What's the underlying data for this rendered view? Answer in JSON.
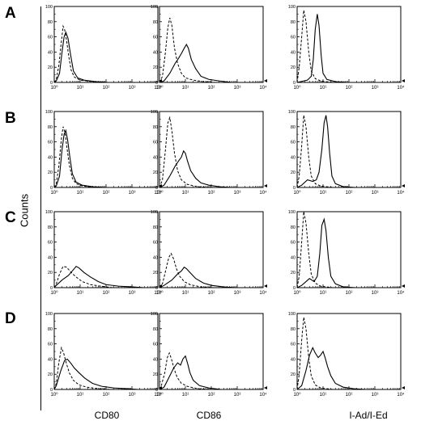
{
  "figure": {
    "row_labels": [
      "A",
      "B",
      "C",
      "D"
    ],
    "column_labels": [
      "CD80",
      "CD86",
      "I-Ad/I-Ed"
    ],
    "y_axis_label": "Counts"
  },
  "chart_data": {
    "type": "line",
    "layout": "grid of 4 rows x 3 columns of flow cytometry histograms",
    "x_scale": "log",
    "xlim": [
      1,
      10000
    ],
    "ylim": [
      0,
      100
    ],
    "x_tick_labels": [
      "10⁰",
      "10¹",
      "10²",
      "10³",
      "10⁴"
    ],
    "y_tick_labels": [
      "0",
      "20",
      "40",
      "60",
      "80",
      "100"
    ],
    "line_styles": {
      "sample": "solid",
      "control": "dashed"
    },
    "panels": [
      {
        "row": "A",
        "column": "CD80",
        "solid": [
          [
            1.2,
            2
          ],
          [
            1.6,
            12
          ],
          [
            2,
            40
          ],
          [
            2.4,
            60
          ],
          [
            2.8,
            66
          ],
          [
            3.4,
            58
          ],
          [
            4.2,
            38
          ],
          [
            5.5,
            15
          ],
          [
            8,
            6
          ],
          [
            14,
            3
          ],
          [
            40,
            1
          ]
        ],
        "dashed": [
          [
            1.2,
            4
          ],
          [
            1.5,
            22
          ],
          [
            1.9,
            55
          ],
          [
            2.2,
            74
          ],
          [
            2.5,
            70
          ],
          [
            3,
            55
          ],
          [
            3.6,
            35
          ],
          [
            4.5,
            16
          ],
          [
            6,
            7
          ],
          [
            10,
            3
          ],
          [
            30,
            1
          ]
        ]
      },
      {
        "row": "A",
        "column": "CD86",
        "solid": [
          [
            1.5,
            2
          ],
          [
            2.5,
            12
          ],
          [
            4,
            25
          ],
          [
            5.5,
            32
          ],
          [
            7,
            38
          ],
          [
            9,
            45
          ],
          [
            11,
            50
          ],
          [
            13,
            45
          ],
          [
            17,
            30
          ],
          [
            25,
            18
          ],
          [
            40,
            8
          ],
          [
            80,
            4
          ],
          [
            200,
            2
          ]
        ],
        "dashed": [
          [
            1.3,
            8
          ],
          [
            1.7,
            40
          ],
          [
            2.1,
            72
          ],
          [
            2.5,
            85
          ],
          [
            3,
            75
          ],
          [
            3.8,
            45
          ],
          [
            5,
            25
          ],
          [
            7,
            12
          ],
          [
            10,
            6
          ],
          [
            20,
            3
          ],
          [
            50,
            1
          ]
        ]
      },
      {
        "row": "A",
        "column": "I-Ad/I-Ed",
        "solid": [
          [
            2.5,
            3
          ],
          [
            3.5,
            8
          ],
          [
            4.2,
            30
          ],
          [
            5,
            70
          ],
          [
            6,
            90
          ],
          [
            7,
            75
          ],
          [
            8.5,
            35
          ],
          [
            10,
            12
          ],
          [
            14,
            4
          ],
          [
            30,
            1
          ]
        ],
        "dashed": [
          [
            1.2,
            20
          ],
          [
            1.5,
            60
          ],
          [
            1.8,
            95
          ],
          [
            2.2,
            80
          ],
          [
            2.8,
            40
          ],
          [
            3.5,
            15
          ],
          [
            5,
            5
          ],
          [
            8,
            2
          ]
        ]
      },
      {
        "row": "B",
        "column": "CD80",
        "solid": [
          [
            1.2,
            2
          ],
          [
            1.6,
            15
          ],
          [
            2,
            50
          ],
          [
            2.4,
            70
          ],
          [
            2.8,
            75
          ],
          [
            3.3,
            62
          ],
          [
            4,
            40
          ],
          [
            5,
            18
          ],
          [
            7,
            7
          ],
          [
            12,
            3
          ],
          [
            30,
            1
          ]
        ],
        "dashed": [
          [
            1.2,
            5
          ],
          [
            1.5,
            28
          ],
          [
            1.9,
            65
          ],
          [
            2.2,
            80
          ],
          [
            2.6,
            72
          ],
          [
            3.1,
            52
          ],
          [
            3.8,
            30
          ],
          [
            5,
            12
          ],
          [
            7,
            5
          ],
          [
            12,
            2
          ]
        ]
      },
      {
        "row": "B",
        "column": "CD86",
        "solid": [
          [
            1.5,
            3
          ],
          [
            2.5,
            15
          ],
          [
            4,
            28
          ],
          [
            5.5,
            35
          ],
          [
            7,
            40
          ],
          [
            8.5,
            48
          ],
          [
            10,
            45
          ],
          [
            12,
            35
          ],
          [
            16,
            22
          ],
          [
            25,
            12
          ],
          [
            40,
            6
          ],
          [
            80,
            3
          ],
          [
            200,
            1
          ]
        ],
        "dashed": [
          [
            1.3,
            10
          ],
          [
            1.7,
            50
          ],
          [
            2.1,
            85
          ],
          [
            2.5,
            92
          ],
          [
            3,
            75
          ],
          [
            3.8,
            45
          ],
          [
            5,
            22
          ],
          [
            7,
            10
          ],
          [
            12,
            4
          ],
          [
            30,
            1
          ]
        ]
      },
      {
        "row": "B",
        "column": "I-Ad/I-Ed",
        "solid": [
          [
            1.5,
            3
          ],
          [
            2.5,
            10
          ],
          [
            4,
            8
          ],
          [
            5.5,
            10
          ],
          [
            7,
            20
          ],
          [
            9,
            50
          ],
          [
            11,
            85
          ],
          [
            13,
            95
          ],
          [
            15,
            80
          ],
          [
            18,
            45
          ],
          [
            22,
            15
          ],
          [
            30,
            5
          ],
          [
            60,
            1
          ]
        ],
        "dashed": [
          [
            1.2,
            15
          ],
          [
            1.5,
            55
          ],
          [
            1.8,
            95
          ],
          [
            2.2,
            80
          ],
          [
            2.8,
            40
          ],
          [
            3.5,
            15
          ],
          [
            5,
            5
          ],
          [
            8,
            2
          ]
        ]
      },
      {
        "row": "C",
        "column": "CD80",
        "solid": [
          [
            1.2,
            3
          ],
          [
            2,
            10
          ],
          [
            3.5,
            16
          ],
          [
            5,
            22
          ],
          [
            7,
            28
          ],
          [
            9,
            26
          ],
          [
            14,
            20
          ],
          [
            25,
            14
          ],
          [
            50,
            8
          ],
          [
            100,
            4
          ],
          [
            300,
            2
          ],
          [
            1000,
            1
          ]
        ],
        "dashed": [
          [
            1.2,
            5
          ],
          [
            1.6,
            18
          ],
          [
            2.2,
            28
          ],
          [
            3,
            27
          ],
          [
            4.5,
            20
          ],
          [
            7,
            14
          ],
          [
            12,
            8
          ],
          [
            25,
            4
          ],
          [
            60,
            2
          ]
        ]
      },
      {
        "row": "C",
        "column": "CD86",
        "solid": [
          [
            1.5,
            3
          ],
          [
            3,
            10
          ],
          [
            5,
            18
          ],
          [
            7,
            22
          ],
          [
            9,
            27
          ],
          [
            11,
            25
          ],
          [
            15,
            20
          ],
          [
            25,
            12
          ],
          [
            50,
            6
          ],
          [
            100,
            3
          ],
          [
            300,
            1
          ]
        ],
        "dashed": [
          [
            1.3,
            5
          ],
          [
            1.8,
            25
          ],
          [
            2.3,
            40
          ],
          [
            2.8,
            45
          ],
          [
            3.5,
            38
          ],
          [
            4.5,
            25
          ],
          [
            6,
            15
          ],
          [
            9,
            8
          ],
          [
            15,
            4
          ],
          [
            40,
            1
          ]
        ]
      },
      {
        "row": "C",
        "column": "I-Ad/I-Ed",
        "solid": [
          [
            1.5,
            3
          ],
          [
            3,
            12
          ],
          [
            4.5,
            8
          ],
          [
            6,
            15
          ],
          [
            7.5,
            45
          ],
          [
            9,
            82
          ],
          [
            11,
            90
          ],
          [
            13,
            75
          ],
          [
            16,
            40
          ],
          [
            20,
            15
          ],
          [
            30,
            5
          ],
          [
            60,
            1
          ]
        ],
        "dashed": [
          [
            1.2,
            15
          ],
          [
            1.5,
            60
          ],
          [
            1.8,
            100
          ],
          [
            2.2,
            85
          ],
          [
            2.8,
            45
          ],
          [
            3.5,
            18
          ],
          [
            5,
            6
          ],
          [
            8,
            2
          ]
        ]
      },
      {
        "row": "D",
        "column": "CD80",
        "solid": [
          [
            1.2,
            5
          ],
          [
            1.8,
            25
          ],
          [
            2.5,
            38
          ],
          [
            3.2,
            40
          ],
          [
            4.5,
            34
          ],
          [
            6,
            28
          ],
          [
            9,
            22
          ],
          [
            15,
            15
          ],
          [
            30,
            8
          ],
          [
            70,
            4
          ],
          [
            200,
            2
          ],
          [
            600,
            1
          ]
        ],
        "dashed": [
          [
            1.2,
            8
          ],
          [
            1.5,
            35
          ],
          [
            1.9,
            55
          ],
          [
            2.3,
            48
          ],
          [
            2.9,
            35
          ],
          [
            3.8,
            22
          ],
          [
            5.5,
            12
          ],
          [
            9,
            6
          ],
          [
            18,
            3
          ],
          [
            50,
            1
          ]
        ]
      },
      {
        "row": "D",
        "column": "CD86",
        "solid": [
          [
            1.5,
            3
          ],
          [
            2.5,
            18
          ],
          [
            3.5,
            28
          ],
          [
            5,
            35
          ],
          [
            6.5,
            32
          ],
          [
            8,
            40
          ],
          [
            10,
            44
          ],
          [
            12,
            35
          ],
          [
            15,
            22
          ],
          [
            20,
            12
          ],
          [
            35,
            5
          ],
          [
            80,
            2
          ]
        ],
        "dashed": [
          [
            1.2,
            6
          ],
          [
            1.6,
            22
          ],
          [
            2,
            42
          ],
          [
            2.4,
            48
          ],
          [
            2.9,
            40
          ],
          [
            3.6,
            28
          ],
          [
            4.8,
            16
          ],
          [
            7,
            8
          ],
          [
            12,
            4
          ],
          [
            30,
            1
          ]
        ]
      },
      {
        "row": "D",
        "column": "I-Ad/I-Ed",
        "solid": [
          [
            1.5,
            5
          ],
          [
            2.2,
            25
          ],
          [
            3,
            45
          ],
          [
            4,
            55
          ],
          [
            5,
            48
          ],
          [
            6.5,
            42
          ],
          [
            8,
            45
          ],
          [
            10,
            50
          ],
          [
            12,
            42
          ],
          [
            15,
            30
          ],
          [
            20,
            18
          ],
          [
            30,
            8
          ],
          [
            60,
            3
          ],
          [
            150,
            1
          ]
        ],
        "dashed": [
          [
            1.2,
            20
          ],
          [
            1.5,
            65
          ],
          [
            1.8,
            95
          ],
          [
            2.2,
            80
          ],
          [
            2.8,
            42
          ],
          [
            3.5,
            18
          ],
          [
            5,
            6
          ],
          [
            8,
            2
          ]
        ]
      }
    ]
  }
}
